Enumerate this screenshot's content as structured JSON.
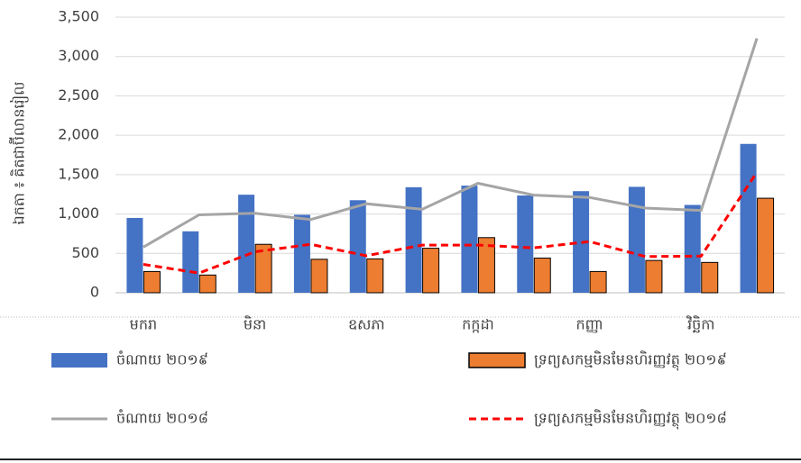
{
  "chart_data": {
    "type": "bar",
    "y_label": "ឯកតា ៖ គិតជាប៊ីលានរៀល",
    "categories": [
      "មករា",
      null,
      "មិនា",
      null,
      "ឧសភា",
      null,
      "កក្កដា",
      null,
      "កញ្ញា",
      null,
      "វិច្ឆិកា",
      null
    ],
    "ylim": [
      0,
      3500
    ],
    "yticks": [
      0,
      500,
      {
        "value": 1000,
        "label": "1,000"
      },
      {
        "value": 1500,
        "label": "1,500"
      },
      {
        "value": 2000,
        "label": "2,000"
      },
      {
        "value": 2500,
        "label": "2,500"
      },
      {
        "value": 3000,
        "label": "3,000"
      },
      {
        "value": 3500,
        "label": "3,500"
      }
    ],
    "grid": true,
    "legend": "bottom",
    "series": [
      {
        "name": "ចំណាយ ២០១៩",
        "type": "bar",
        "color": "#4472c4",
        "values": [
          950,
          780,
          1245,
          990,
          1175,
          1340,
          1360,
          1235,
          1290,
          1345,
          1115,
          1890
        ]
      },
      {
        "name": "ទ្រព្យសកម្មមិនមែនហិរញ្ញវត្ថុ ២០១៩",
        "type": "bar",
        "color": "#ed7d31",
        "border": "#000000",
        "values": [
          270,
          225,
          615,
          425,
          430,
          565,
          700,
          440,
          270,
          410,
          385,
          1200
        ]
      },
      {
        "name": "ចំណាយ ២០១៨",
        "type": "line",
        "color": "#a5a5a5",
        "values": [
          580,
          990,
          1010,
          930,
          1130,
          1060,
          1390,
          1240,
          1210,
          1075,
          1045,
          3230
        ]
      },
      {
        "name": "ទ្រព្យសកម្មមិនមែនហិរញ្ញវត្ថុ ២០១៨",
        "type": "line",
        "color": "#ff0000",
        "dashed": true,
        "values": [
          360,
          250,
          520,
          615,
          470,
          605,
          605,
          570,
          650,
          460,
          465,
          1530
        ]
      }
    ]
  }
}
